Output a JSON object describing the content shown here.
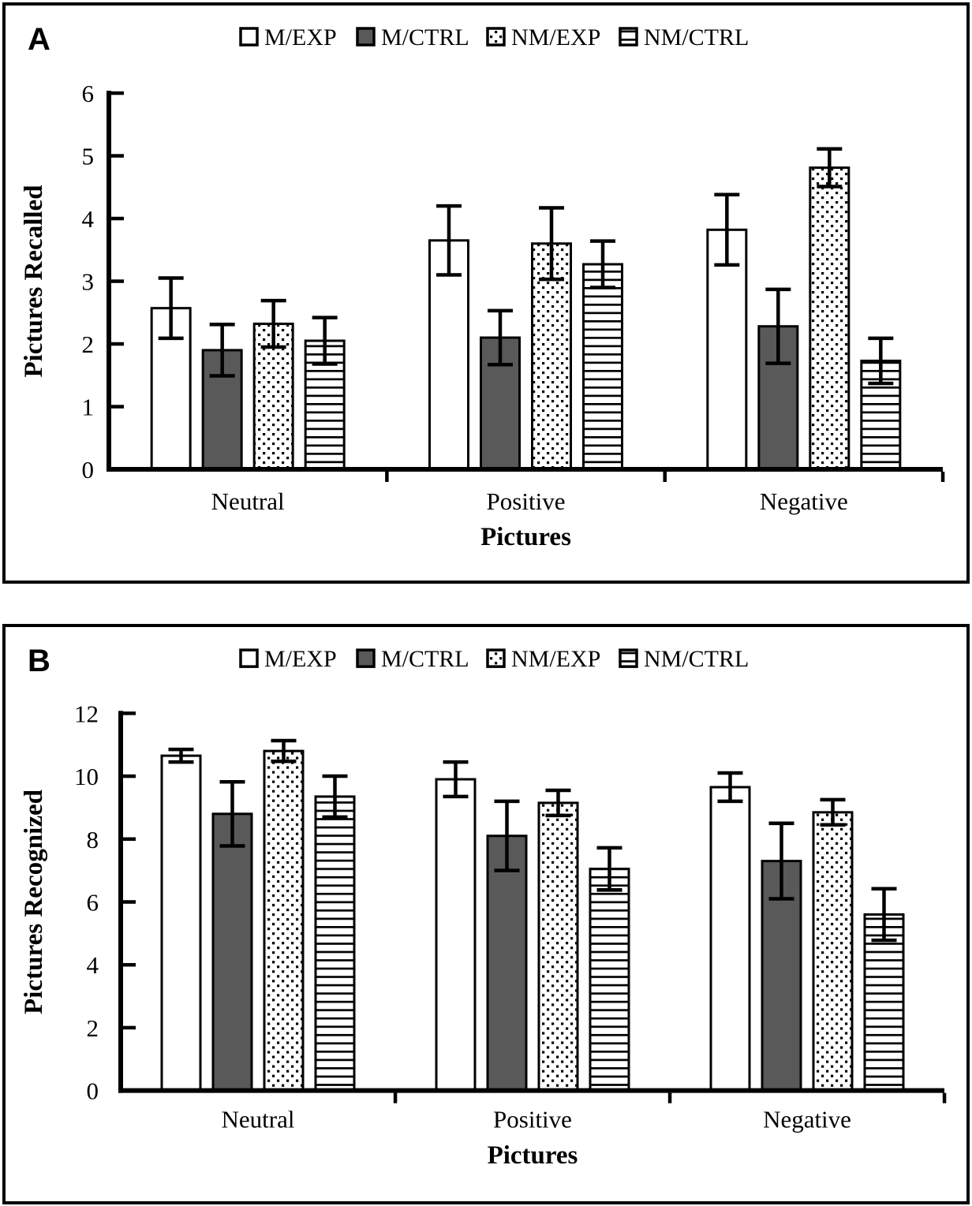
{
  "figure": {
    "background_color": "#ffffff",
    "border_color": "#000000",
    "bar_gray_color": "#595959",
    "bar_white_color": "#ffffff",
    "line_color": "#000000"
  },
  "chart_data": [
    {
      "type": "bar",
      "panel_label": "A",
      "title": "",
      "xlabel": "Pictures",
      "ylabel": "Pictures Recalled",
      "ylim": [
        0,
        6
      ],
      "yticks": [
        0,
        1,
        2,
        3,
        4,
        5,
        6
      ],
      "grid": false,
      "legend_position": "top",
      "error_bars": true,
      "categories": [
        "Neutral",
        "Positive",
        "Negative"
      ],
      "series": [
        {
          "name": "M/EXP",
          "style": "white",
          "values": [
            2.57,
            3.65,
            3.82
          ],
          "errors": [
            0.48,
            0.55,
            0.56
          ]
        },
        {
          "name": "M/CTRL",
          "style": "gray",
          "values": [
            1.9,
            2.1,
            2.28
          ],
          "errors": [
            0.41,
            0.43,
            0.59
          ]
        },
        {
          "name": "NM/EXP",
          "style": "dots",
          "values": [
            2.32,
            3.6,
            4.81
          ],
          "errors": [
            0.37,
            0.57,
            0.3
          ]
        },
        {
          "name": "NM/CTRL",
          "style": "hlines",
          "values": [
            2.05,
            3.27,
            1.73
          ],
          "errors": [
            0.37,
            0.37,
            0.36
          ]
        }
      ]
    },
    {
      "type": "bar",
      "panel_label": "B",
      "title": "",
      "xlabel": "Pictures",
      "ylabel": "Pictures Recognized",
      "ylim": [
        0,
        12
      ],
      "yticks": [
        0,
        2,
        4,
        6,
        8,
        10,
        12
      ],
      "grid": false,
      "legend_position": "top",
      "error_bars": true,
      "categories": [
        "Neutral",
        "Positive",
        "Negative"
      ],
      "series": [
        {
          "name": "M/EXP",
          "style": "white",
          "values": [
            10.65,
            9.9,
            9.65
          ],
          "errors": [
            0.2,
            0.55,
            0.45
          ]
        },
        {
          "name": "M/CTRL",
          "style": "gray",
          "values": [
            8.8,
            8.1,
            7.3
          ],
          "errors": [
            1.02,
            1.1,
            1.2
          ]
        },
        {
          "name": "NM/EXP",
          "style": "dots",
          "values": [
            10.8,
            9.15,
            8.85
          ],
          "errors": [
            0.33,
            0.4,
            0.4
          ]
        },
        {
          "name": "NM/CTRL",
          "style": "hlines",
          "values": [
            9.35,
            7.05,
            5.6
          ],
          "errors": [
            0.65,
            0.67,
            0.82
          ]
        }
      ]
    }
  ]
}
